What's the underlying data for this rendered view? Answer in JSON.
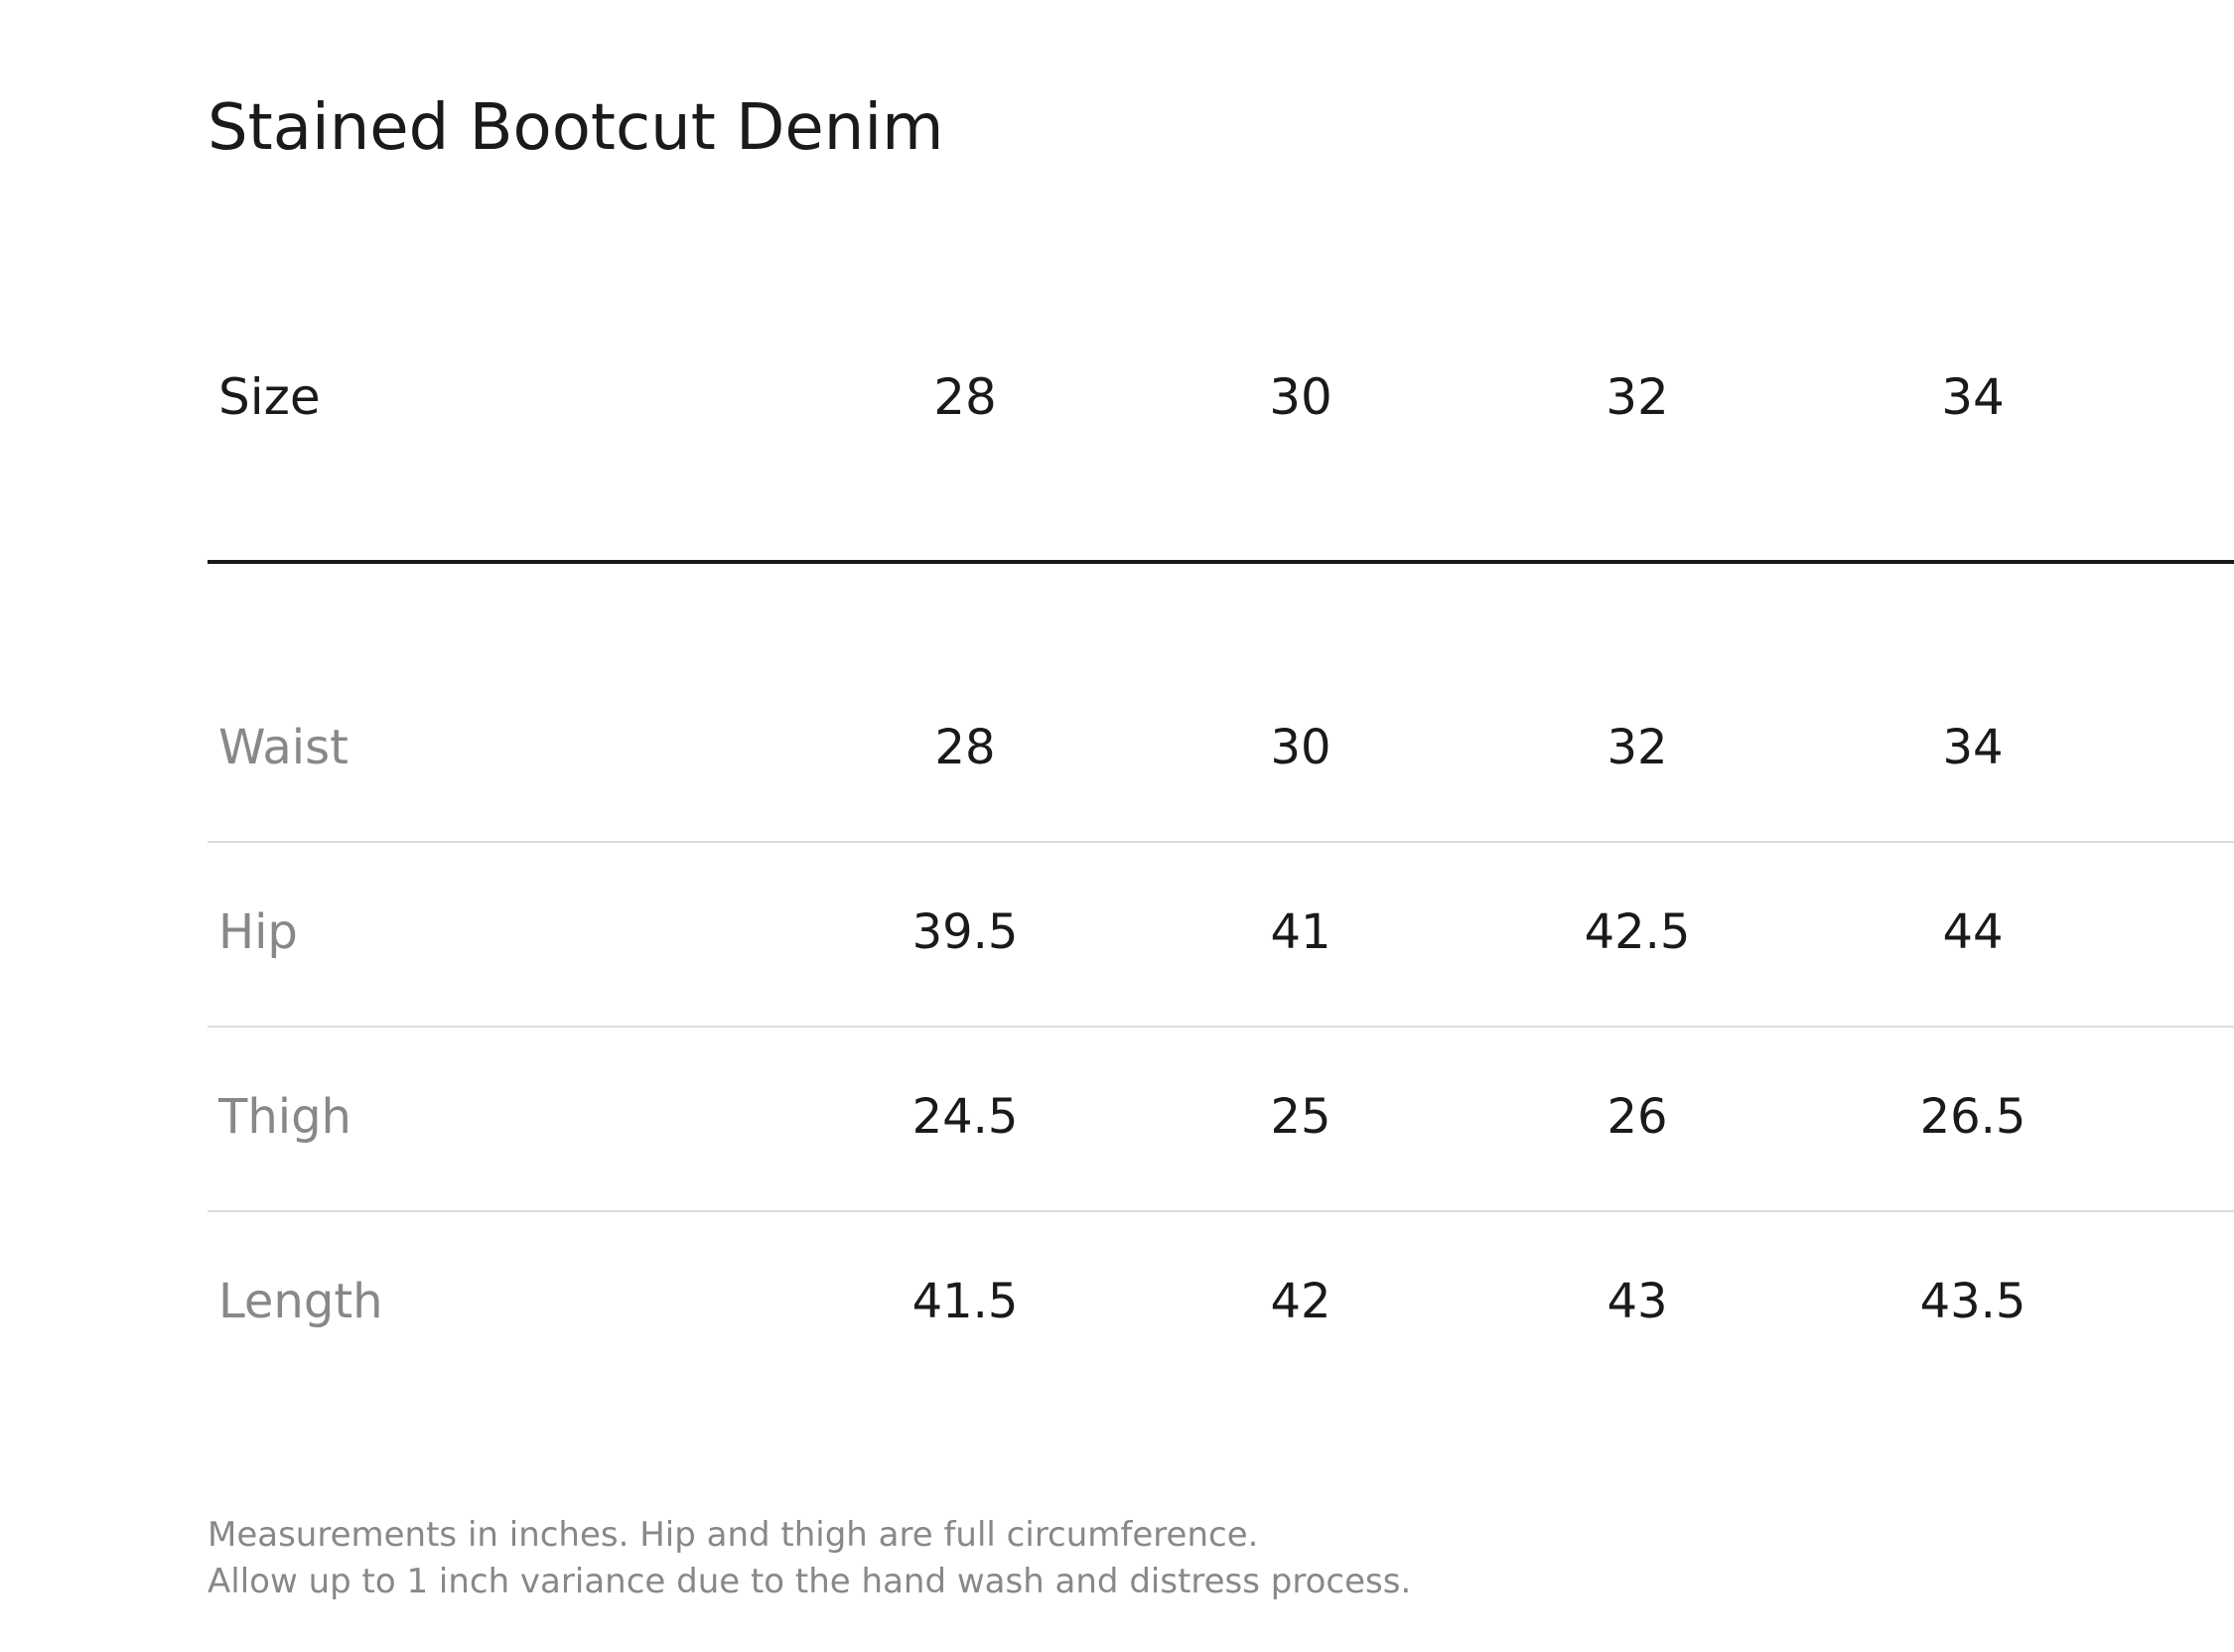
{
  "title": "Stained Bootcut Denim",
  "table": {
    "header_label": "Size",
    "sizes": [
      "28",
      "30",
      "32",
      "34"
    ],
    "rows": [
      {
        "label": "Waist",
        "values": [
          "28",
          "30",
          "32",
          "34"
        ]
      },
      {
        "label": "Hip",
        "values": [
          "39.5",
          "41",
          "42.5",
          "44"
        ]
      },
      {
        "label": "Thigh",
        "values": [
          "24.5",
          "25",
          "26",
          "26.5"
        ]
      },
      {
        "label": "Length",
        "values": [
          "41.5",
          "42",
          "43",
          "43.5"
        ]
      }
    ]
  },
  "notes": [
    "Measurements in inches. Hip and thigh are full circumference.",
    "Allow up to 1 inch variance due to the hand wash and distress process."
  ],
  "colors": {
    "text_primary": "#1a1a1a",
    "text_muted": "#888888",
    "divider_strong": "#1a1a1a",
    "divider_light": "#dddddd",
    "background": "#ffffff"
  }
}
